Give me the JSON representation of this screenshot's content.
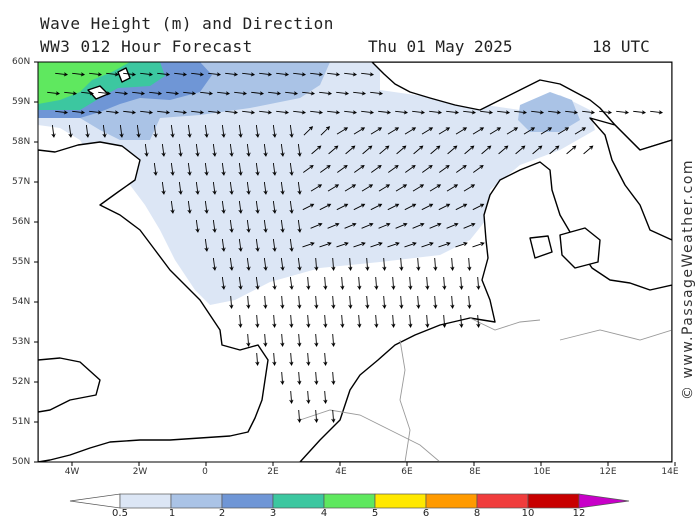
{
  "header": {
    "title": "Wave Height (m) and Direction",
    "model": "WW3 012 Hour Forecast",
    "date": "Thu 01 May 2025",
    "time": "18 UTC"
  },
  "credit": "© www.PassageWeather.com",
  "map": {
    "region": "North Sea",
    "lat_ticks": [
      "60N",
      "59N",
      "58N",
      "57N",
      "56N",
      "55N",
      "54N",
      "53N",
      "52N",
      "51N",
      "50N"
    ],
    "lon_ticks": [
      "4W",
      "2W",
      "0",
      "2E",
      "4E",
      "6E",
      "8E",
      "10E",
      "12E",
      "14E"
    ],
    "land_color": "#ffffff",
    "coast_color": "#000000"
  },
  "legend": {
    "labels": [
      "0.5",
      "1",
      "2",
      "3",
      "4",
      "5",
      "6",
      "8",
      "10",
      "12"
    ],
    "colors": [
      "#dce6f5",
      "#aac3e6",
      "#6f96d6",
      "#3cc7a0",
      "#5fe85f",
      "#ffe800",
      "#ff9a00",
      "#f03c3c",
      "#c80000",
      "#c800c8"
    ]
  }
}
